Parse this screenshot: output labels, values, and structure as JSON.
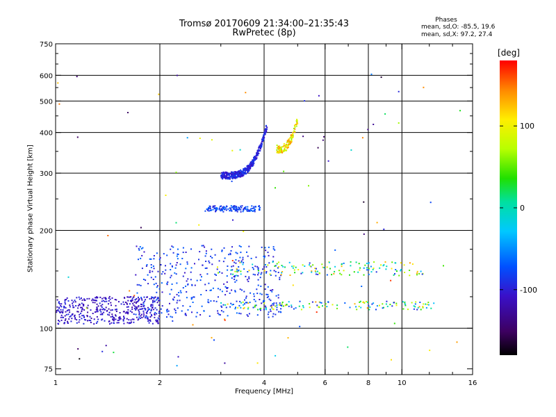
{
  "chart_data": {
    "type": "scatter",
    "title": "Tromsø 20170609 21:34:00–21:35:43",
    "subtitle": "RwPretec (8p)",
    "xlabel": "Frequency [MHz]",
    "ylabel": "Stationary phase Virtual Height [km]",
    "x_scale": "log",
    "y_scale": "log",
    "xlim": [
      1,
      16
    ],
    "ylim": [
      72,
      750
    ],
    "x_ticks": [
      1,
      2,
      4,
      6,
      8,
      10,
      16
    ],
    "x_tick_labels": [
      "1",
      "2",
      "4",
      "6",
      "8",
      "10",
      "16"
    ],
    "x_minor_ticks": [
      3,
      5,
      7,
      9,
      12,
      14
    ],
    "y_ticks": [
      75,
      100,
      200,
      300,
      400,
      500,
      600,
      750
    ],
    "y_tick_labels": [
      "75",
      "100",
      "200",
      "300",
      "400",
      "500",
      "600",
      "750"
    ],
    "y_minor_ticks": [
      125,
      150,
      175,
      250,
      350,
      450,
      550,
      650,
      700
    ],
    "grid": true,
    "grid_x": [
      2,
      4,
      6,
      8,
      10
    ],
    "grid_y": [
      100,
      200,
      300,
      400,
      500,
      600
    ],
    "phase_info": {
      "header": "Phases",
      "o_line": "mean, sd,O:  -85.5,  19.6",
      "x_line": "mean, sd,X:   97.2,  27.4"
    },
    "colorbar": {
      "label": "[deg]",
      "range": [
        -180,
        180
      ],
      "ticks": [
        100,
        0,
        -100
      ],
      "tick_labels": [
        "100",
        "0",
        "-100"
      ],
      "colormap": "rainbow (black-purple-blue-cyan-green-yellow-orange-red)"
    },
    "clusters": [
      {
        "name": "E-region O-mode trace",
        "x_range": [
          1.0,
          2.0
        ],
        "y_range": [
          103,
          125
        ],
        "phase_range": [
          -125,
          -90
        ],
        "density": "high"
      },
      {
        "name": "F1 low-band scatter",
        "x_range": [
          1.7,
          4.5
        ],
        "y_range": [
          108,
          180
        ],
        "phase_range": [
          -110,
          -60
        ],
        "density": "high"
      },
      {
        "name": "F1 horizontal band 118 km",
        "x_range": [
          3.0,
          12.5
        ],
        "y_range": [
          114,
          121
        ],
        "phase_range": [
          -100,
          140
        ],
        "density": "medium"
      },
      {
        "name": "F1 horizontal band 150 km",
        "x_range": [
          3.2,
          11.5
        ],
        "y_range": [
          145,
          160
        ],
        "phase_range": [
          -100,
          140
        ],
        "density": "medium"
      },
      {
        "name": "F2 O-mode cusp",
        "x_range": [
          3.0,
          4.08
        ],
        "y_range": [
          295,
          420
        ],
        "phase_range": [
          -110,
          -80
        ],
        "density": "high"
      },
      {
        "name": "F2 X-mode trace",
        "x_range": [
          4.35,
          5.0
        ],
        "y_range": [
          355,
          440
        ],
        "phase_range": [
          60,
          150
        ],
        "density": "medium"
      },
      {
        "name": "230 km band",
        "x_range": [
          2.7,
          3.9
        ],
        "y_range": [
          228,
          238
        ],
        "phase_range": [
          -100,
          -60
        ],
        "density": "medium"
      },
      {
        "name": "Sparse noise",
        "x_range": [
          1.0,
          16.0
        ],
        "y_range": [
          75,
          620
        ],
        "phase_range": [
          -180,
          180
        ],
        "density": "low"
      }
    ]
  }
}
